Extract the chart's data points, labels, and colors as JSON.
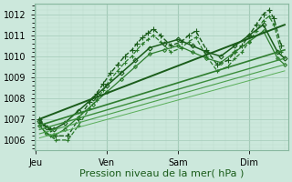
{
  "xlabel": "Pression niveau de la mer( hPa )",
  "bg_color": "#cce8dc",
  "grid_color_major": "#aacfbe",
  "grid_color_minor": "#bbdacc",
  "ylim": [
    1005.5,
    1012.5
  ],
  "yticks": [
    1006,
    1007,
    1008,
    1009,
    1010,
    1011,
    1012
  ],
  "day_labels": [
    "Jeu",
    "Ven",
    "Sam",
    "Dim"
  ],
  "day_positions": [
    0.0,
    1.0,
    2.0,
    3.0
  ],
  "xlim": [
    -0.02,
    3.55
  ],
  "lines": [
    {
      "x": [
        0.05,
        0.12,
        0.2,
        0.28,
        0.45,
        0.6,
        0.75,
        0.85,
        0.95,
        1.05,
        1.15,
        1.25,
        1.35,
        1.42,
        1.5,
        1.58,
        1.65,
        1.75,
        1.9,
        2.05,
        2.15,
        2.25,
        2.4,
        2.55,
        2.7,
        2.8,
        2.9,
        3.0,
        3.1,
        3.2,
        3.28,
        3.35,
        3.45
      ],
      "y": [
        1007.0,
        1006.7,
        1006.5,
        1006.2,
        1006.2,
        1007.0,
        1007.8,
        1008.2,
        1008.7,
        1009.2,
        1009.6,
        1010.0,
        1010.3,
        1010.6,
        1010.9,
        1011.1,
        1011.3,
        1011.0,
        1010.5,
        1010.7,
        1011.0,
        1011.2,
        1010.3,
        1009.6,
        1009.8,
        1010.2,
        1010.5,
        1011.0,
        1011.5,
        1012.0,
        1012.2,
        1011.8,
        1010.5
      ],
      "style": "--",
      "marker": "+",
      "color": "#1a5c1a",
      "lw": 1.0,
      "ms": 4
    },
    {
      "x": [
        0.05,
        0.12,
        0.2,
        0.28,
        0.45,
        0.6,
        0.75,
        0.85,
        0.95,
        1.05,
        1.15,
        1.25,
        1.35,
        1.42,
        1.5,
        1.58,
        1.65,
        1.75,
        1.9,
        2.05,
        2.15,
        2.25,
        2.4,
        2.55,
        2.7,
        2.8,
        2.9,
        3.0,
        3.1,
        3.2,
        3.28,
        3.35,
        3.45
      ],
      "y": [
        1006.8,
        1006.4,
        1006.2,
        1006.0,
        1006.0,
        1006.7,
        1007.5,
        1007.9,
        1008.4,
        1008.9,
        1009.3,
        1009.7,
        1010.0,
        1010.3,
        1010.6,
        1010.8,
        1011.0,
        1010.7,
        1010.2,
        1010.4,
        1010.7,
        1010.9,
        1010.0,
        1009.3,
        1009.5,
        1009.9,
        1010.2,
        1010.7,
        1011.2,
        1011.7,
        1011.9,
        1011.5,
        1010.2
      ],
      "style": "--",
      "marker": "+",
      "color": "#2a7a2a",
      "lw": 0.9,
      "ms": 3.5
    },
    {
      "x": [
        0.05,
        0.15,
        0.25,
        0.4,
        0.6,
        0.8,
        1.0,
        1.2,
        1.4,
        1.6,
        1.8,
        2.0,
        2.2,
        2.4,
        2.6,
        2.8,
        3.0,
        3.2,
        3.4,
        3.5
      ],
      "y": [
        1006.9,
        1006.6,
        1006.5,
        1006.8,
        1007.4,
        1008.0,
        1008.6,
        1009.2,
        1009.8,
        1010.4,
        1010.6,
        1010.8,
        1010.5,
        1010.2,
        1010.0,
        1010.5,
        1011.0,
        1011.5,
        1010.2,
        1009.9
      ],
      "style": "-",
      "marker": "D",
      "color": "#1a5c1a",
      "lw": 1.1,
      "ms": 2.5
    },
    {
      "x": [
        0.05,
        0.15,
        0.25,
        0.4,
        0.6,
        0.8,
        1.0,
        1.2,
        1.4,
        1.6,
        1.8,
        2.0,
        2.2,
        2.4,
        2.6,
        2.8,
        3.0,
        3.2,
        3.4,
        3.5
      ],
      "y": [
        1006.7,
        1006.3,
        1006.2,
        1006.5,
        1007.1,
        1007.7,
        1008.3,
        1008.9,
        1009.5,
        1010.1,
        1010.3,
        1010.5,
        1010.2,
        1009.9,
        1009.7,
        1010.2,
        1010.7,
        1011.2,
        1009.9,
        1009.6
      ],
      "style": "-",
      "marker": "D",
      "color": "#2e7d2e",
      "lw": 0.9,
      "ms": 2.0
    },
    {
      "x": [
        0.05,
        3.5
      ],
      "y": [
        1007.0,
        1011.5
      ],
      "style": "-",
      "marker": null,
      "color": "#1a5c1a",
      "lw": 1.4,
      "ms": 0
    },
    {
      "x": [
        0.05,
        3.5
      ],
      "y": [
        1006.7,
        1010.3
      ],
      "style": "-",
      "marker": null,
      "color": "#2e7d2e",
      "lw": 1.2,
      "ms": 0
    },
    {
      "x": [
        0.05,
        3.5
      ],
      "y": [
        1006.5,
        1009.9
      ],
      "style": "-",
      "marker": null,
      "color": "#3a8c3a",
      "lw": 1.0,
      "ms": 0
    },
    {
      "x": [
        0.05,
        3.5
      ],
      "y": [
        1006.3,
        1009.6
      ],
      "style": "-",
      "marker": null,
      "color": "#4a9e4a",
      "lw": 0.8,
      "ms": 0
    },
    {
      "x": [
        0.05,
        3.5
      ],
      "y": [
        1006.1,
        1009.3
      ],
      "style": "-",
      "marker": null,
      "color": "#5aae5a",
      "lw": 0.7,
      "ms": 0
    }
  ],
  "vlines": [
    1.0,
    2.0,
    3.0
  ],
  "vline_color": "#88b8a0",
  "tick_fontsize": 7,
  "xlabel_fontsize": 8
}
